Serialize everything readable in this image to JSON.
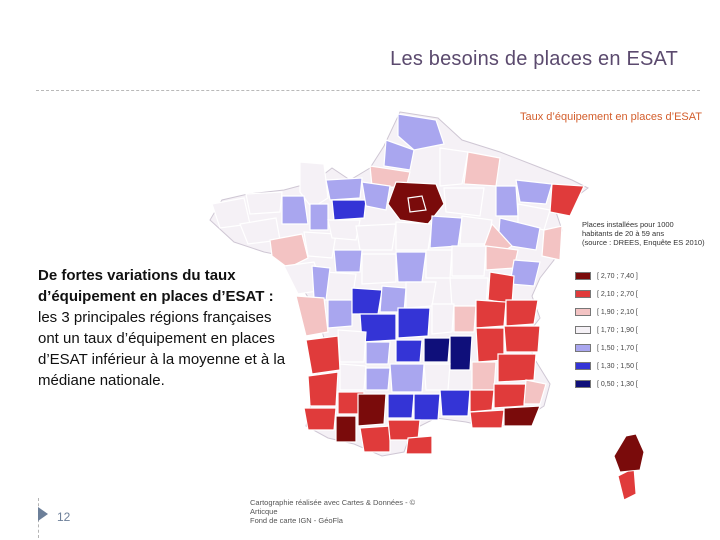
{
  "slide": {
    "title": "Les besoins de places en ESAT",
    "subtitle": "Taux d’équipement en places d’ESAT",
    "body_lead": "De fortes variations du taux d’équipement en places d’ESAT :",
    "body_rest": "les 3 principales régions françaises ont un taux d’équipement en places d’ESAT inférieur à la moyenne et à la médiane nationale.",
    "page_number": "12",
    "credit": "Cartographie réalisée avec Cartes & Données - © Articque\nFond de carte IGN - GéoFla"
  },
  "legend": {
    "title": "Places installées pour 1000\nhabitants de 20 à 59 ans\n(source : DREES, Enquête ES 2010)",
    "items": [
      {
        "label": "[ 2,70 ; 7,40 ]",
        "color": "#7a0b0b"
      },
      {
        "label": "[ 2,10 ; 2,70 [",
        "color": "#e03b3b"
      },
      {
        "label": "[ 1,90 ; 2,10 [",
        "color": "#f3c3c3"
      },
      {
        "label": "[ 1,70 ; 1,90 [",
        "color": "#f5f1f6"
      },
      {
        "label": "[ 1,50 ; 1,70 [",
        "color": "#a9a6ef"
      },
      {
        "label": "[ 1,30 ; 1,50 [",
        "color": "#3434d6"
      },
      {
        "label": "[ 0,50 ; 1,30 [",
        "color": "#0f0f7a"
      }
    ]
  },
  "map": {
    "region_colors": {
      "c7": "#7a0b0b",
      "c6": "#e03b3b",
      "c5": "#f3c3c3",
      "c4": "#f5f1f6",
      "c3": "#a9a6ef",
      "c2": "#3434d6",
      "c1": "#0f0f7a"
    }
  }
}
